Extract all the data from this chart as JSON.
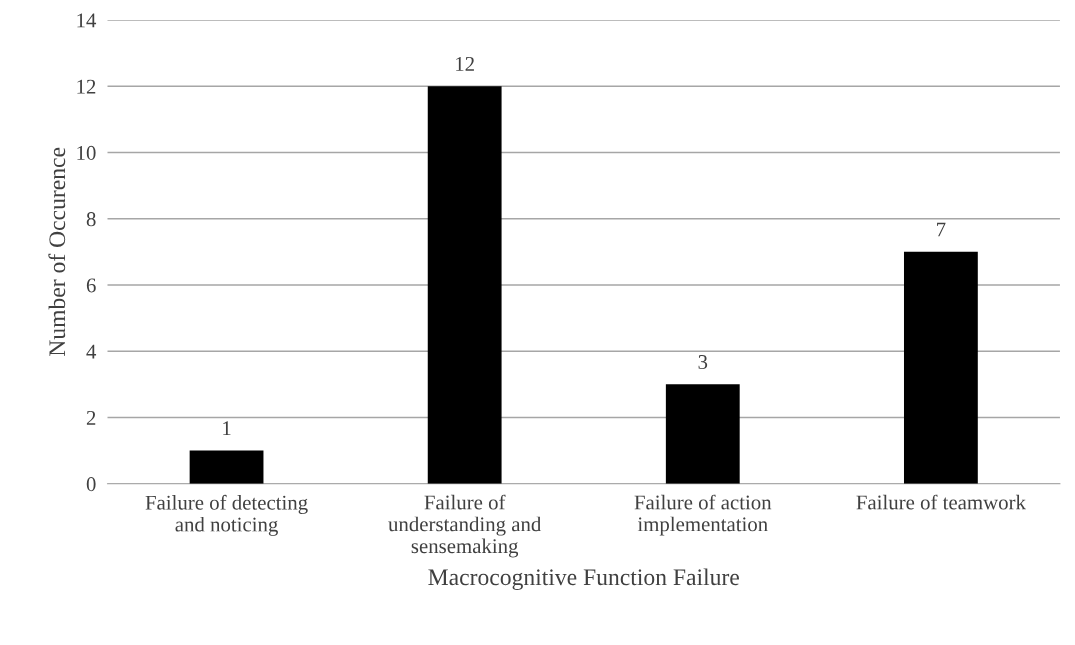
{
  "chart_data": {
    "type": "bar",
    "xlabel": "Macrocognitive Function Failure",
    "ylabel": "Number of Occurence",
    "categories": [
      "Failure of detecting\nand noticing",
      "Failure of\nunderstanding and\nsensemaking",
      "Failure of action\nimplementation",
      "Failure of teamwork"
    ],
    "values": [
      1,
      12,
      3,
      7
    ],
    "color": "#000000",
    "ylim": [
      0,
      14
    ],
    "yticks": [
      0,
      2,
      4,
      6,
      8,
      10,
      12,
      14
    ],
    "grid": "y",
    "data_labels": true,
    "legend": false
  }
}
